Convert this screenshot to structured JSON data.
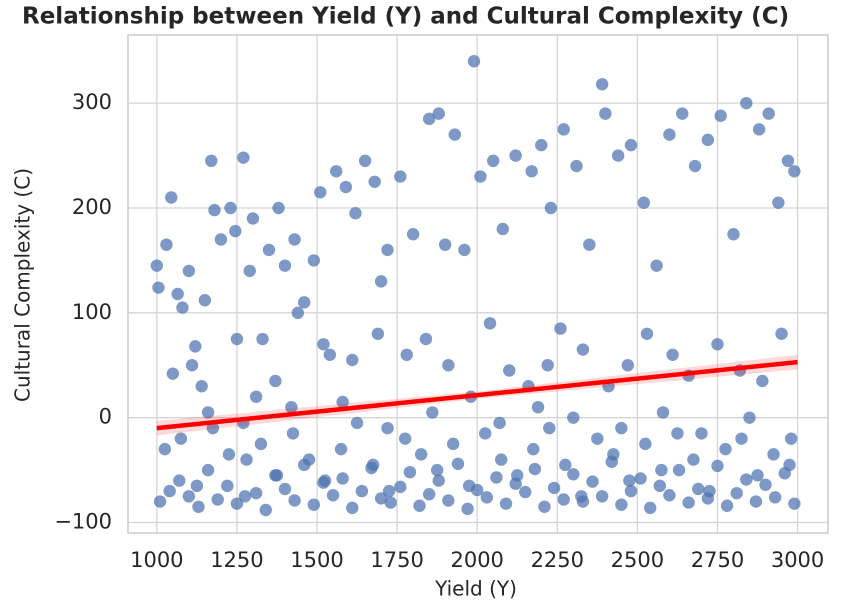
{
  "chart_data": {
    "type": "scatter",
    "title": "Relationship between Yield (Y) and Cultural Complexity (C)",
    "x_label": "Yield (Y)",
    "y_label": "Cultural Complexity (C)",
    "xlim": [
      910,
      3095
    ],
    "ylim": [
      -110,
      365
    ],
    "xticks": [
      1000,
      1250,
      1500,
      1750,
      2000,
      2250,
      2500,
      2750,
      3000
    ],
    "yticks": [
      {
        "value": -100,
        "label": "−100"
      },
      0,
      100,
      200,
      300
    ],
    "grid": true,
    "color": "#4c72b0",
    "x": [
      1010,
      1040,
      1070,
      1100,
      1130,
      1160,
      1190,
      1220,
      1250,
      1280,
      1310,
      1340,
      1370,
      1400,
      1430,
      1460,
      1490,
      1520,
      1550,
      1580,
      1610,
      1640,
      1670,
      1700,
      1730,
      1760,
      1790,
      1820,
      1850,
      1880,
      1910,
      1940,
      1970,
      2000,
      2030,
      2060,
      2090,
      2120,
      2150,
      2180,
      2210,
      2240,
      2270,
      2300,
      2330,
      2360,
      2390,
      2420,
      2450,
      2480,
      2510,
      2540,
      2570,
      2600,
      2630,
      2660,
      2690,
      2720,
      2750,
      2780,
      2810,
      2840,
      2870,
      2900,
      2930,
      2960,
      2990,
      1025,
      1075,
      1125,
      1175,
      1225,
      1275,
      1325,
      1375,
      1425,
      1475,
      1525,
      1575,
      1625,
      1675,
      1725,
      1775,
      1825,
      1875,
      1925,
      1975,
      2025,
      2075,
      2125,
      2175,
      2225,
      2275,
      2325,
      2375,
      2425,
      2475,
      2525,
      2575,
      2625,
      2675,
      2725,
      2775,
      2825,
      2875,
      2925,
      2975,
      1000,
      1005,
      1030,
      1045,
      1065,
      1080,
      1100,
      1120,
      1150,
      1170,
      1180,
      1200,
      1230,
      1245,
      1270,
      1290,
      1300,
      1330,
      1350,
      1380,
      1400,
      1430,
      1460,
      1490,
      1510,
      1540,
      1560,
      1590,
      1620,
      1650,
      1680,
      1700,
      1720,
      1760,
      1800,
      1850,
      1880,
      1900,
      1930,
      1960,
      1990,
      2010,
      2050,
      2080,
      2120,
      2170,
      2200,
      2230,
      2270,
      2310,
      2350,
      2390,
      2400,
      2440,
      2480,
      2520,
      2560,
      2600,
      2640,
      2680,
      2720,
      2760,
      2800,
      2840,
      2880,
      2910,
      2940,
      2970,
      2990,
      1050,
      1110,
      1140,
      1250,
      1310,
      1370,
      1440,
      1520,
      1610,
      1690,
      1780,
      1840,
      1910,
      1980,
      2040,
      2100,
      2160,
      2220,
      2260,
      2330,
      2410,
      2470,
      2530,
      2610,
      2660,
      2750,
      2820,
      2890,
      2950,
      1160,
      1270,
      1420,
      1580,
      1720,
      1860,
      2070,
      2190,
      2300,
      2450,
      2580,
      2700,
      2850,
      2980
    ],
    "values": [
      -80,
      -70,
      -60,
      -75,
      -85,
      -50,
      -78,
      -65,
      -82,
      -40,
      -72,
      -88,
      -55,
      -68,
      -79,
      -45,
      -83,
      -62,
      -74,
      -58,
      -86,
      -70,
      -48,
      -77,
      -81,
      -66,
      -52,
      -84,
      -73,
      -60,
      -79,
      -44,
      -87,
      -69,
      -76,
      -57,
      -82,
      -63,
      -71,
      -49,
      -85,
      -67,
      -78,
      -54,
      -80,
      -61,
      -75,
      -42,
      -83,
      -70,
      -58,
      -86,
      -65,
      -74,
      -50,
      -81,
      -68,
      -77,
      -46,
      -84,
      -72,
      -59,
      -80,
      -64,
      -76,
      -53,
      -82,
      -30,
      -20,
      -65,
      -10,
      -35,
      -75,
      -25,
      -55,
      -15,
      -40,
      -60,
      -30,
      -5,
      -45,
      -70,
      -20,
      -35,
      -50,
      -25,
      -65,
      -15,
      -40,
      -55,
      -30,
      -10,
      -45,
      -75,
      -20,
      -35,
      -60,
      -25,
      -50,
      -15,
      -40,
      -70,
      -30,
      -20,
      -55,
      -35,
      -45,
      145,
      124,
      165,
      210,
      118,
      105,
      140,
      68,
      112,
      245,
      198,
      170,
      200,
      178,
      248,
      140,
      190,
      75,
      160,
      200,
      145,
      170,
      110,
      150,
      215,
      60,
      235,
      220,
      195,
      245,
      225,
      130,
      160,
      230,
      175,
      285,
      290,
      165,
      270,
      160,
      340,
      230,
      245,
      180,
      250,
      235,
      260,
      200,
      275,
      240,
      165,
      318,
      290,
      250,
      260,
      205,
      145,
      270,
      290,
      240,
      265,
      288,
      175,
      300,
      275,
      290,
      205,
      245,
      235,
      42,
      50,
      30,
      75,
      20,
      35,
      100,
      70,
      55,
      80,
      60,
      75,
      50,
      20,
      90,
      45,
      30,
      50,
      85,
      65,
      30,
      50,
      80,
      60,
      40,
      70,
      45,
      35,
      80,
      5,
      -5,
      10,
      15,
      -10,
      5,
      -5,
      10,
      0,
      -10,
      5,
      -15,
      0,
      -20
    ],
    "trend": {
      "x": [
        1000,
        3000
      ],
      "values": [
        -10,
        53
      ],
      "color": "#ff0000"
    },
    "band": {
      "x": [
        1000,
        2000,
        3000
      ],
      "lower": [
        -17,
        18,
        46
      ],
      "upper": [
        -3,
        25,
        60
      ],
      "color": "#ff0000"
    }
  }
}
